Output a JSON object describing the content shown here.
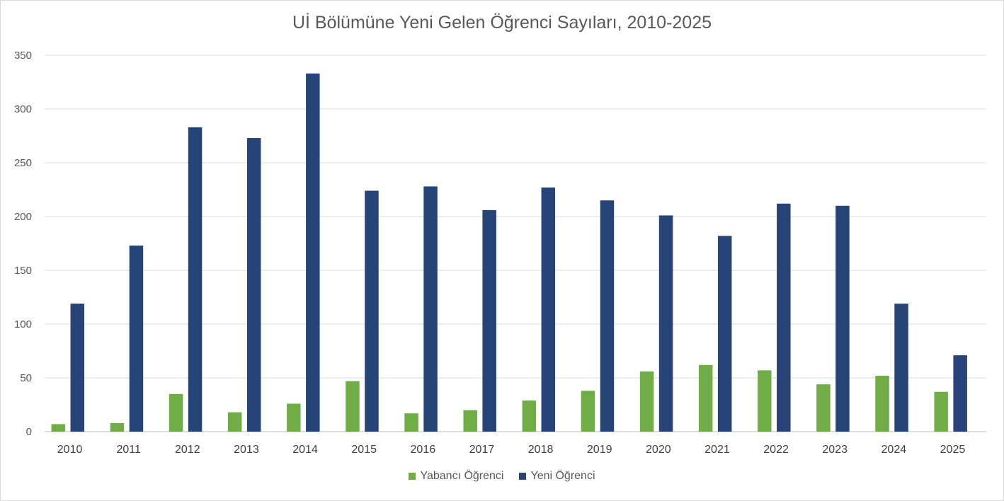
{
  "chart_data": {
    "type": "bar",
    "title": "Uİ Bölümüne Yeni Gelen Öğrenci Sayıları, 2010-2025",
    "xlabel": "",
    "ylabel": "",
    "ylim": [
      0,
      350
    ],
    "yticks": [
      0,
      50,
      100,
      150,
      200,
      250,
      300,
      350
    ],
    "grid": true,
    "legend_position": "bottom",
    "categories": [
      "2010",
      "2011",
      "2012",
      "2013",
      "2014",
      "2015",
      "2016",
      "2017",
      "2018",
      "2019",
      "2020",
      "2021",
      "2022",
      "2023",
      "2024",
      "2025"
    ],
    "series": [
      {
        "name": "Yabancı Öğrenci",
        "color": "#70ad47",
        "values": [
          7,
          8,
          35,
          18,
          26,
          47,
          17,
          20,
          29,
          38,
          56,
          62,
          57,
          44,
          52,
          37
        ]
      },
      {
        "name": "Yeni Öğrenci",
        "color": "#264478",
        "values": [
          119,
          173,
          283,
          273,
          333,
          224,
          228,
          206,
          227,
          215,
          201,
          182,
          212,
          210,
          119,
          71
        ]
      }
    ]
  }
}
